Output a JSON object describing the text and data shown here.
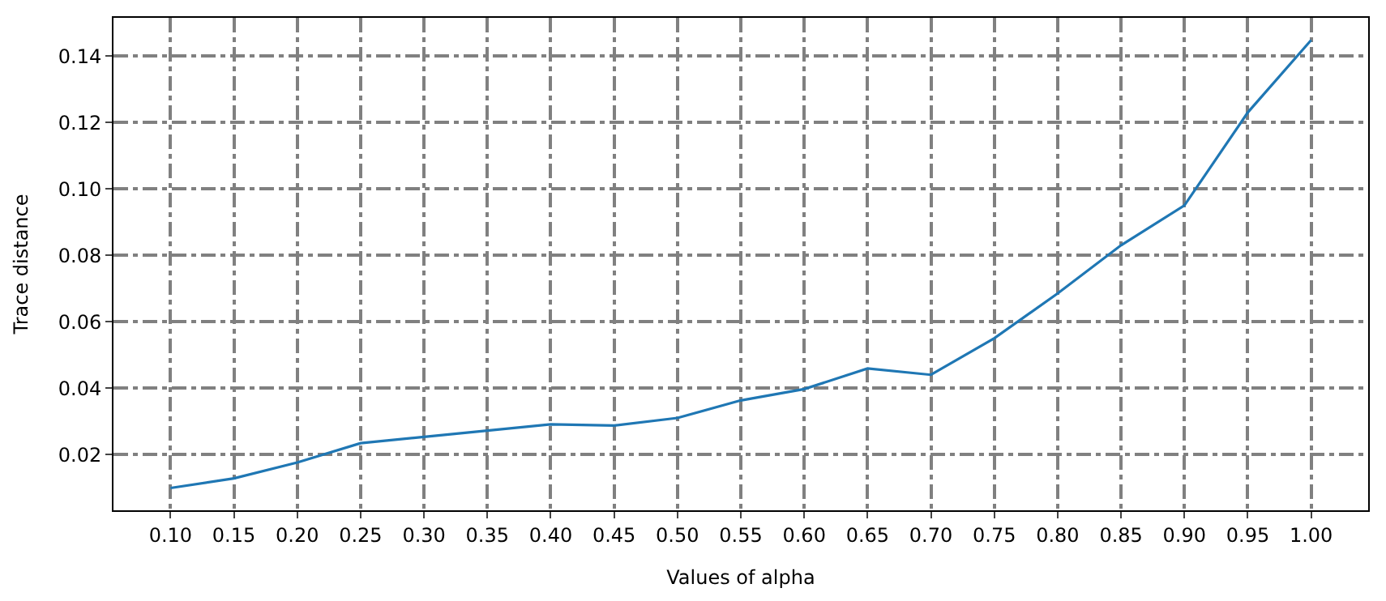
{
  "chart_data": {
    "type": "line",
    "xlabel": "Values of alpha",
    "ylabel": "Trace distance",
    "x": [
      0.1,
      0.15,
      0.2,
      0.25,
      0.3,
      0.35,
      0.4,
      0.45,
      0.5,
      0.55,
      0.6,
      0.65,
      0.7,
      0.75,
      0.8,
      0.85,
      0.9,
      0.95,
      1.0
    ],
    "series": [
      {
        "color": "#1f77b4",
        "values": [
          0.0099,
          0.0128,
          0.0176,
          0.0234,
          0.0253,
          0.0272,
          0.0291,
          0.0287,
          0.031,
          0.0363,
          0.0397,
          0.0459,
          0.044,
          0.055,
          0.0685,
          0.083,
          0.095,
          0.123,
          0.1448
        ]
      }
    ],
    "xlim": [
      0.055,
      1.045
    ],
    "xticks": [
      {
        "value": 0.1,
        "label": "0.10"
      },
      {
        "value": 0.15,
        "label": "0.15"
      },
      {
        "value": 0.2,
        "label": "0.20"
      },
      {
        "value": 0.25,
        "label": "0.25"
      },
      {
        "value": 0.3,
        "label": "0.30"
      },
      {
        "value": 0.35,
        "label": "0.35"
      },
      {
        "value": 0.4,
        "label": "0.40"
      },
      {
        "value": 0.45,
        "label": "0.45"
      },
      {
        "value": 0.5,
        "label": "0.50"
      },
      {
        "value": 0.55,
        "label": "0.55"
      },
      {
        "value": 0.6,
        "label": "0.60"
      },
      {
        "value": 0.65,
        "label": "0.65"
      },
      {
        "value": 0.7,
        "label": "0.70"
      },
      {
        "value": 0.75,
        "label": "0.75"
      },
      {
        "value": 0.8,
        "label": "0.80"
      },
      {
        "value": 0.85,
        "label": "0.85"
      },
      {
        "value": 0.9,
        "label": "0.90"
      },
      {
        "value": 0.95,
        "label": "0.95"
      },
      {
        "value": 1.0,
        "label": "1.00"
      }
    ],
    "ylim": [
      0.0032,
      0.1515
    ],
    "yticks": [
      {
        "value": 0.02,
        "label": "0.02"
      },
      {
        "value": 0.04,
        "label": "0.04"
      },
      {
        "value": 0.06,
        "label": "0.06"
      },
      {
        "value": 0.08,
        "label": "0.08"
      },
      {
        "value": 0.1,
        "label": "0.10"
      },
      {
        "value": 0.12,
        "label": "0.12"
      },
      {
        "value": 0.14,
        "label": "0.14"
      }
    ],
    "grid": true,
    "marker": "none",
    "line_style": "solid"
  }
}
